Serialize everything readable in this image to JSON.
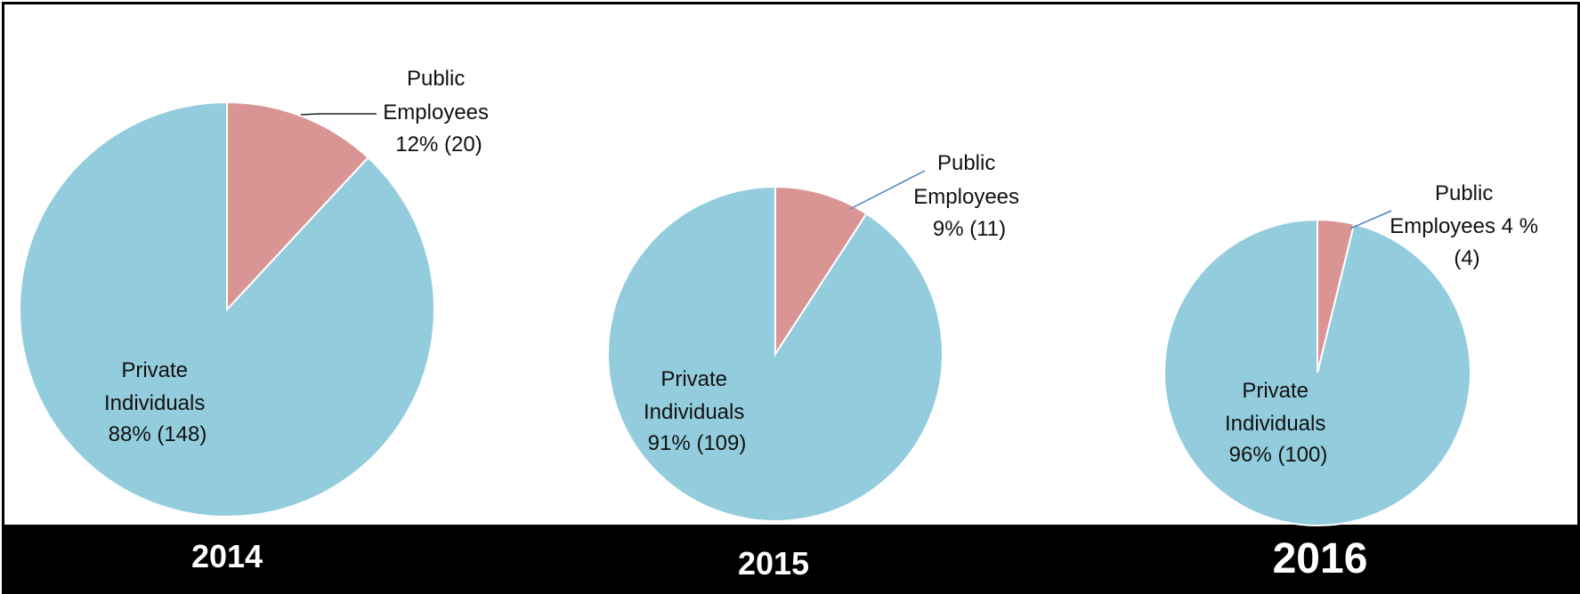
{
  "chart_data": [
    {
      "type": "pie",
      "title": "2014",
      "categories": [
        "Public Employees",
        "Private Individuals"
      ],
      "values": [
        20,
        148
      ],
      "percents": [
        12,
        88
      ],
      "labels": [
        [
          "Public",
          "Employees",
          "12% (20)"
        ],
        [
          "Private",
          "Individuals",
          "88% (148)"
        ]
      ]
    },
    {
      "type": "pie",
      "title": "2015",
      "categories": [
        "Public Employees",
        "Private Individuals"
      ],
      "values": [
        11,
        109
      ],
      "percents": [
        9,
        91
      ],
      "labels": [
        [
          "Public",
          "Employees",
          "9% (11)"
        ],
        [
          "Private",
          "Individuals",
          "91% (109)"
        ]
      ]
    },
    {
      "type": "pie",
      "title": "2016",
      "categories": [
        "Public Employees",
        "Private Individuals"
      ],
      "values": [
        4,
        100
      ],
      "percents": [
        4,
        96
      ],
      "labels": [
        [
          "Public",
          "Employees 4 %",
          "(4)"
        ],
        [
          "Private",
          "Individuals",
          "96% (100)"
        ]
      ]
    }
  ],
  "colors": {
    "public_employees": "#d99594",
    "private_individuals": "#93cddd",
    "leader_line": "#4f81bd",
    "banner": "#000000",
    "year_text": "#ffffff"
  }
}
